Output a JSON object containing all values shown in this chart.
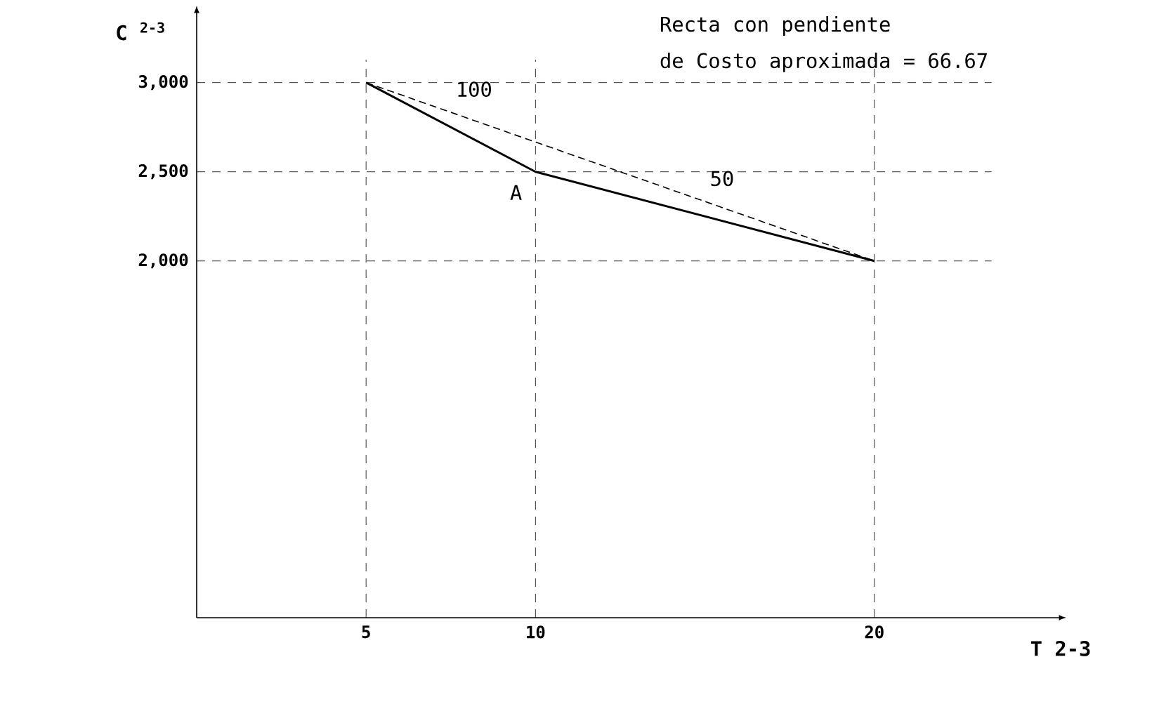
{
  "chart_data": {
    "type": "line",
    "xlabel": "T 2-3",
    "ylabel": "C $^{2-3}$",
    "xlim": [
      0,
      25.5
    ],
    "ylim": [
      0,
      3400
    ],
    "xticks": [
      5,
      10,
      20
    ],
    "yticks": [
      {
        "value": 2000,
        "label": "2,000"
      },
      {
        "value": 2500,
        "label": "2,500"
      },
      {
        "value": 3000,
        "label": "3,000"
      }
    ],
    "series": [
      {
        "x": [
          5,
          10,
          20
        ],
        "values": [
          3000,
          2500,
          2000
        ],
        "color": "#000000",
        "line_style": "solid"
      },
      {
        "x": [
          5,
          20
        ],
        "values": [
          3000,
          2000
        ],
        "color": "#000000",
        "line_style": "dashed"
      }
    ],
    "ref_lines": [
      {
        "axis": "x",
        "value": 5,
        "line_style": "dashed"
      },
      {
        "axis": "x",
        "value": 10,
        "line_style": "dashed"
      },
      {
        "axis": "x",
        "value": 20,
        "line_style": "dashed"
      },
      {
        "axis": "y",
        "value": 2000,
        "line_style": "dashed"
      },
      {
        "axis": "y",
        "value": 2500,
        "line_style": "dashed"
      },
      {
        "axis": "y",
        "value": 3000,
        "line_style": "dashed"
      }
    ],
    "annotations": [
      "Recta con pendiente",
      "de Costo aproximada =  66.67",
      {
        "text": "100",
        "x": 7.5,
        "y": 2750
      },
      {
        "text": "50",
        "x": 15,
        "y": 2250
      },
      {
        "text": "A",
        "x": 10,
        "y": 2500
      }
    ],
    "marker": "none",
    "grid": false
  }
}
